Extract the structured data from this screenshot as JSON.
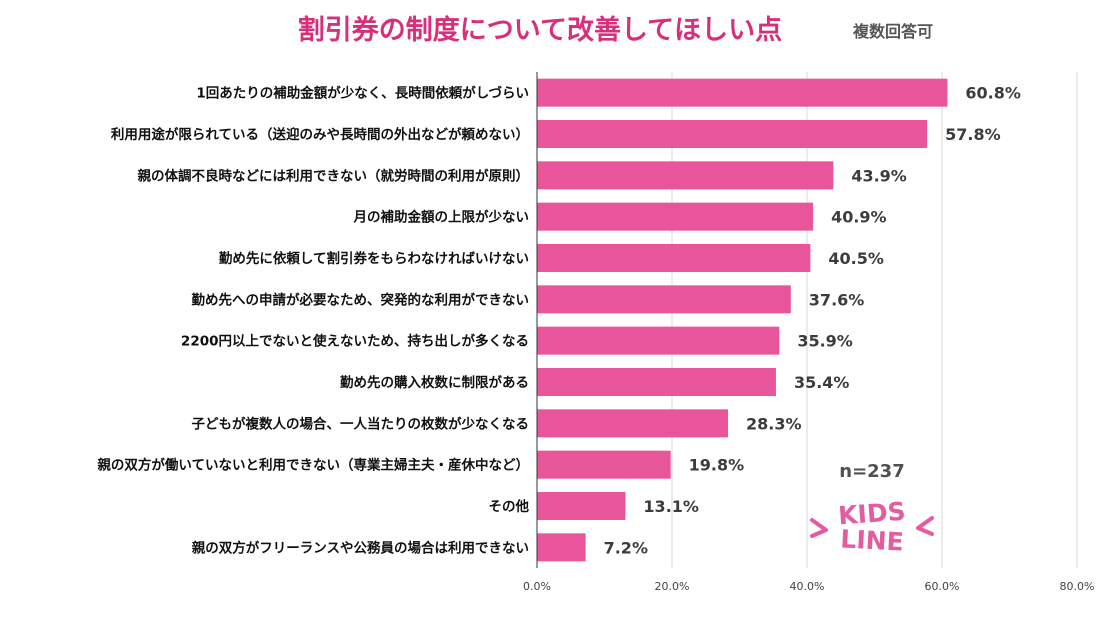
{
  "chart_data": {
    "type": "bar",
    "orientation": "horizontal",
    "title": "割引券の制度について改善してほしい点",
    "subtitle": "複数回答可",
    "categories": [
      "1回あたりの補助金額が少なく、長時間依頼がしづらい",
      "利用用途が限られている（送迎のみや長時間の外出などが頼めない）",
      "親の体調不良時などには利用できない（就労時間の利用が原則）",
      "月の補助金額の上限が少ない",
      "勤め先に依頼して割引券をもらわなければいけない",
      "勤め先への申請が必要なため、突発的な利用ができない",
      "2200円以上でないと使えないため、持ち出しが多くなる",
      "勤め先の購入枚数に制限がある",
      "子どもが複数人の場合、一人当たりの枚数が少なくなる",
      "親の双方が働いていないと利用できない（専業主婦主夫・産休中など）",
      "その他",
      "親の双方がフリーランスや公務員の場合は利用できない"
    ],
    "values": [
      60.8,
      57.8,
      43.9,
      40.9,
      40.5,
      37.6,
      35.9,
      35.4,
      28.3,
      19.8,
      13.1,
      7.2
    ],
    "value_labels": [
      "60.8%",
      "57.8%",
      "43.9%",
      "40.9%",
      "40.5%",
      "37.6%",
      "35.9%",
      "35.4%",
      "28.3%",
      "19.8%",
      "13.1%",
      "7.2%"
    ],
    "xlim": [
      0,
      80
    ],
    "xticks": [
      0,
      20,
      40,
      60,
      80
    ],
    "xtick_labels": [
      "0.0%",
      "20.0%",
      "40.0%",
      "60.0%",
      "80.0%"
    ],
    "grid": true,
    "annotation": "n=237"
  },
  "colors": {
    "bar": "#e8559b",
    "title": "#d6307c",
    "subtitle": "#555555",
    "grid": "#d9d9d9",
    "logo": "#e35ba0"
  },
  "logo": {
    "line1": "KIDS",
    "line2": "LINE"
  }
}
